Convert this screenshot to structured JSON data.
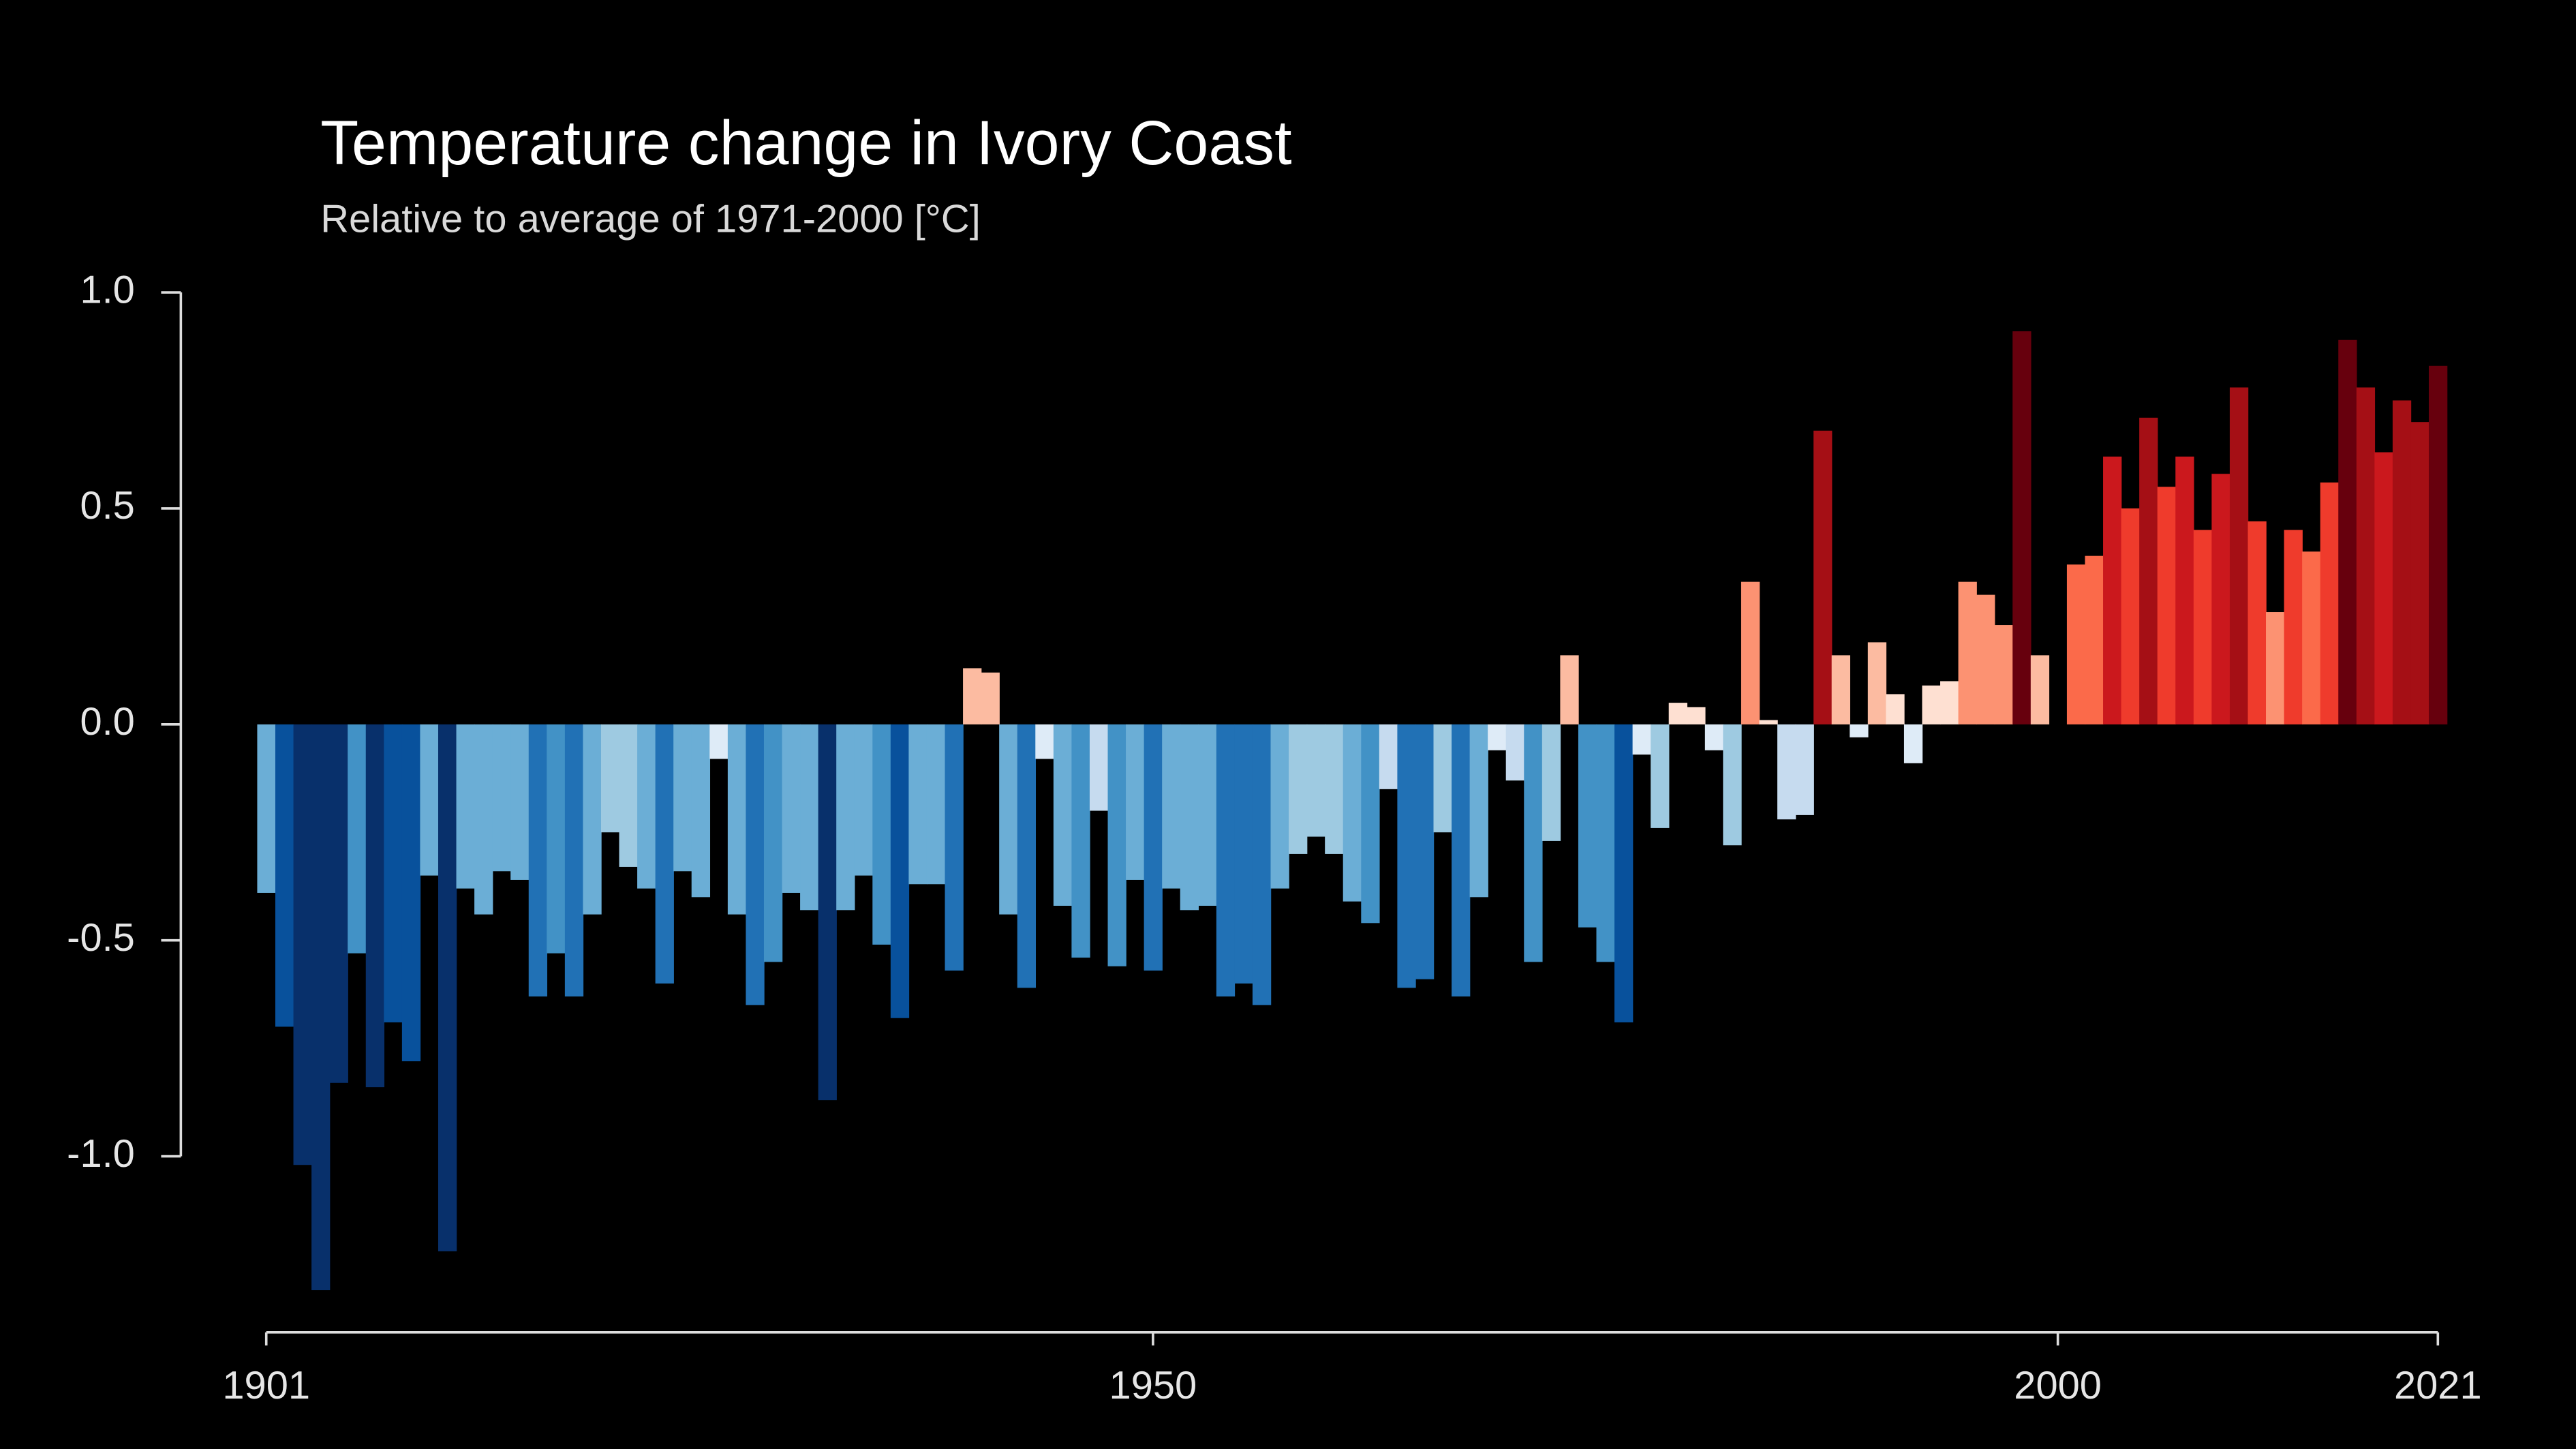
{
  "chart_data": {
    "type": "bar",
    "title": "Temperature change in Ivory Coast",
    "subtitle": "Relative to average of 1971-2000  [°C]",
    "x": [
      1901,
      1902,
      1903,
      1904,
      1905,
      1906,
      1907,
      1908,
      1909,
      1910,
      1911,
      1912,
      1913,
      1914,
      1915,
      1916,
      1917,
      1918,
      1919,
      1920,
      1921,
      1922,
      1923,
      1924,
      1925,
      1926,
      1927,
      1928,
      1929,
      1930,
      1931,
      1932,
      1933,
      1934,
      1935,
      1936,
      1937,
      1938,
      1939,
      1940,
      1941,
      1942,
      1943,
      1944,
      1945,
      1946,
      1947,
      1948,
      1949,
      1950,
      1951,
      1952,
      1953,
      1954,
      1955,
      1956,
      1957,
      1958,
      1959,
      1960,
      1961,
      1962,
      1963,
      1964,
      1965,
      1966,
      1967,
      1968,
      1969,
      1970,
      1971,
      1972,
      1973,
      1974,
      1975,
      1976,
      1977,
      1978,
      1979,
      1980,
      1981,
      1982,
      1983,
      1984,
      1985,
      1986,
      1987,
      1988,
      1989,
      1990,
      1991,
      1992,
      1993,
      1994,
      1995,
      1996,
      1997,
      1998,
      1999,
      2000,
      2001,
      2002,
      2003,
      2004,
      2005,
      2006,
      2007,
      2008,
      2009,
      2010,
      2011,
      2012,
      2013,
      2014,
      2015,
      2016,
      2017,
      2018,
      2019,
      2020,
      2021
    ],
    "values": [
      -0.39,
      -0.7,
      -1.02,
      -1.31,
      -0.83,
      -0.53,
      -0.84,
      -0.69,
      -0.78,
      -0.35,
      -1.22,
      -0.38,
      -0.44,
      -0.34,
      -0.36,
      -0.63,
      -0.53,
      -0.63,
      -0.44,
      -0.25,
      -0.33,
      -0.38,
      -0.6,
      -0.34,
      -0.4,
      -0.08,
      -0.44,
      -0.65,
      -0.55,
      -0.39,
      -0.43,
      -0.87,
      -0.43,
      -0.35,
      -0.51,
      -0.68,
      -0.37,
      -0.37,
      -0.57,
      0.13,
      0.12,
      -0.44,
      -0.61,
      -0.08,
      -0.42,
      -0.54,
      -0.2,
      -0.56,
      -0.36,
      -0.57,
      -0.38,
      -0.43,
      -0.42,
      -0.63,
      -0.6,
      -0.65,
      -0.38,
      -0.3,
      -0.26,
      -0.3,
      -0.41,
      -0.46,
      -0.15,
      -0.61,
      -0.59,
      -0.25,
      -0.63,
      -0.4,
      -0.06,
      -0.13,
      -0.55,
      -0.27,
      0.16,
      -0.47,
      -0.55,
      -0.69,
      -0.07,
      -0.24,
      0.05,
      0.04,
      -0.06,
      -0.28,
      0.33,
      0.01,
      -0.22,
      -0.21,
      0.68,
      0.16,
      -0.03,
      0.19,
      0.07,
      -0.09,
      0.09,
      0.1,
      0.33,
      0.3,
      0.23,
      0.91,
      0.16,
      0.0,
      0.37,
      0.39,
      0.62,
      0.5,
      0.71,
      0.55,
      0.62,
      0.45,
      0.58,
      0.78,
      0.47,
      0.26,
      0.45,
      0.4,
      0.56,
      0.89,
      0.78,
      0.63,
      0.75,
      0.7,
      0.83
    ],
    "colormap": [
      "#08306b",
      "#08519c",
      "#2171b5",
      "#4292c6",
      "#6baed6",
      "#9ecae1",
      "#c6dbef",
      "#deebf7",
      "#fee0d2",
      "#fcbba1",
      "#fc9272",
      "#fb6a4a",
      "#ef3b2c",
      "#cb181d",
      "#a50f15",
      "#67000d"
    ],
    "color_range": [
      -0.9,
      0.9
    ],
    "xlim": [
      1901,
      2021
    ],
    "xticks": [
      1901,
      1950,
      2000,
      2021
    ],
    "ylim": [
      -1.4,
      1.0
    ],
    "yticks": [
      {
        "value": 1.0,
        "label": "1.0"
      },
      0.5,
      {
        "value": 0.0,
        "label": "0.0"
      },
      -0.5,
      {
        "value": -1.0,
        "label": "-1.0"
      }
    ],
    "grid": false
  }
}
